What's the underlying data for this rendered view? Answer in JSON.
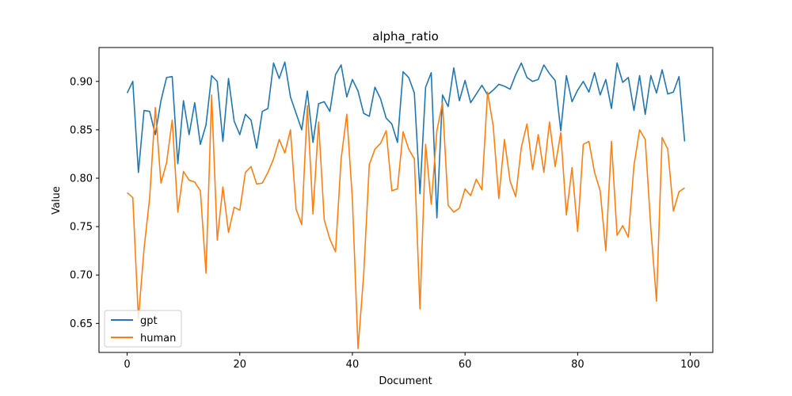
{
  "chart_data": {
    "type": "line",
    "title": "alpha_ratio",
    "xlabel": "Document",
    "ylabel": "Value",
    "xlim": [
      -5,
      104
    ],
    "ylim": [
      0.62,
      0.935
    ],
    "xticks": [
      0,
      20,
      40,
      60,
      80,
      100
    ],
    "yticks": [
      0.65,
      0.7,
      0.75,
      0.8,
      0.85,
      0.9
    ],
    "ytick_labels": [
      "0.65",
      "0.70",
      "0.75",
      "0.80",
      "0.85",
      "0.90"
    ],
    "grid": false,
    "legend_position": "lower-left",
    "series": [
      {
        "name": "gpt",
        "color": "#1f77b4",
        "values": [
          0.888,
          0.9,
          0.806,
          0.87,
          0.869,
          0.845,
          0.88,
          0.904,
          0.905,
          0.815,
          0.88,
          0.845,
          0.878,
          0.835,
          0.855,
          0.906,
          0.9,
          0.838,
          0.903,
          0.859,
          0.845,
          0.866,
          0.86,
          0.831,
          0.869,
          0.872,
          0.919,
          0.903,
          0.92,
          0.884,
          0.867,
          0.85,
          0.89,
          0.837,
          0.877,
          0.879,
          0.869,
          0.907,
          0.917,
          0.884,
          0.902,
          0.89,
          0.867,
          0.864,
          0.894,
          0.882,
          0.862,
          0.856,
          0.837,
          0.91,
          0.904,
          0.888,
          0.784,
          0.894,
          0.909,
          0.759,
          0.886,
          0.874,
          0.914,
          0.88,
          0.901,
          0.878,
          0.887,
          0.896,
          0.886,
          0.891,
          0.897,
          0.895,
          0.892,
          0.907,
          0.919,
          0.904,
          0.9,
          0.902,
          0.917,
          0.908,
          0.901,
          0.849,
          0.906,
          0.879,
          0.891,
          0.9,
          0.889,
          0.909,
          0.886,
          0.902,
          0.872,
          0.919,
          0.899,
          0.904,
          0.87,
          0.906,
          0.866,
          0.906,
          0.888,
          0.912,
          0.887,
          0.889,
          0.905,
          0.838
        ]
      },
      {
        "name": "human",
        "color": "#ff7f0e",
        "values": [
          0.785,
          0.78,
          0.655,
          0.727,
          0.78,
          0.873,
          0.795,
          0.816,
          0.86,
          0.765,
          0.807,
          0.798,
          0.796,
          0.787,
          0.702,
          0.886,
          0.736,
          0.791,
          0.744,
          0.77,
          0.767,
          0.806,
          0.812,
          0.794,
          0.795,
          0.806,
          0.82,
          0.84,
          0.826,
          0.85,
          0.768,
          0.752,
          0.875,
          0.763,
          0.858,
          0.757,
          0.737,
          0.724,
          0.82,
          0.866,
          0.778,
          0.624,
          0.7,
          0.814,
          0.83,
          0.836,
          0.849,
          0.787,
          0.789,
          0.848,
          0.83,
          0.82,
          0.665,
          0.835,
          0.773,
          0.849,
          0.878,
          0.772,
          0.765,
          0.769,
          0.789,
          0.782,
          0.799,
          0.788,
          0.889,
          0.854,
          0.779,
          0.84,
          0.797,
          0.781,
          0.832,
          0.856,
          0.809,
          0.845,
          0.806,
          0.858,
          0.812,
          0.847,
          0.762,
          0.811,
          0.745,
          0.835,
          0.838,
          0.806,
          0.787,
          0.725,
          0.838,
          0.741,
          0.751,
          0.739,
          0.813,
          0.85,
          0.84,
          0.748,
          0.673,
          0.842,
          0.83,
          0.766,
          0.786,
          0.79
        ]
      }
    ]
  }
}
